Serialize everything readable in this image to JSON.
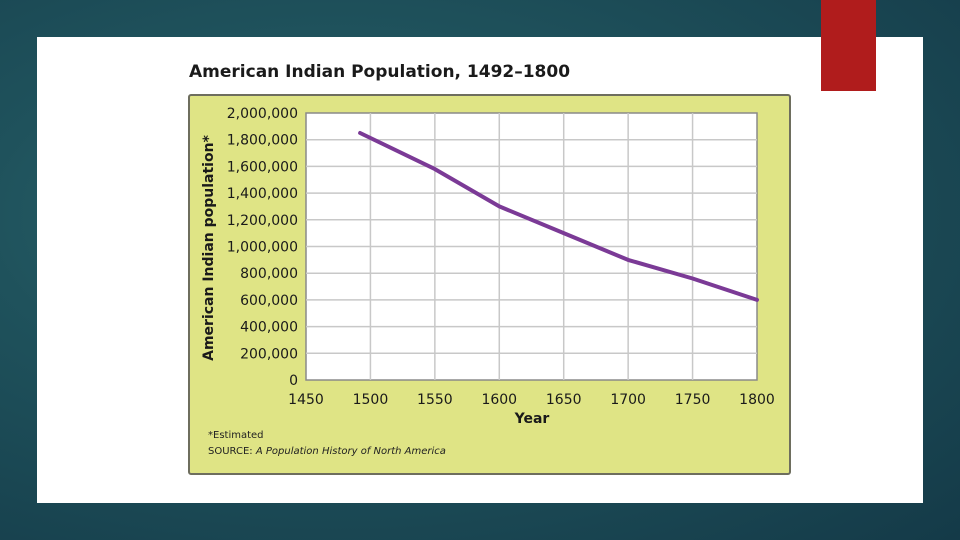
{
  "chart_data": {
    "type": "line",
    "title": "American Indian Population, 1492–1800",
    "xlabel": "Year",
    "ylabel": "American Indian population*",
    "xlim": [
      1450,
      1800
    ],
    "ylim": [
      0,
      2000000
    ],
    "x_ticks": [
      "1450",
      "1500",
      "1550",
      "1600",
      "1650",
      "1700",
      "1750",
      "1800"
    ],
    "y_ticks": [
      "0",
      "200,000",
      "400,000",
      "600,000",
      "800,000",
      "1,000,000",
      "1,200,000",
      "1,400,000",
      "1,600,000",
      "1,800,000",
      "2,000,000"
    ],
    "grid": true,
    "series": [
      {
        "name": "American Indian population",
        "color": "#7b3a96",
        "x": [
          1492,
          1550,
          1600,
          1650,
          1700,
          1750,
          1800
        ],
        "y": [
          1850000,
          1580000,
          1300000,
          1100000,
          900000,
          760000,
          600000
        ]
      }
    ],
    "footnote": "*Estimated",
    "source_prefix": "SOURCE: ",
    "source_title": "A Population History of North America"
  },
  "colors": {
    "panel": "#dfe485",
    "plot_background": "#ffffff",
    "grid": "#c8c8c8",
    "accent": "#b01c1c"
  }
}
